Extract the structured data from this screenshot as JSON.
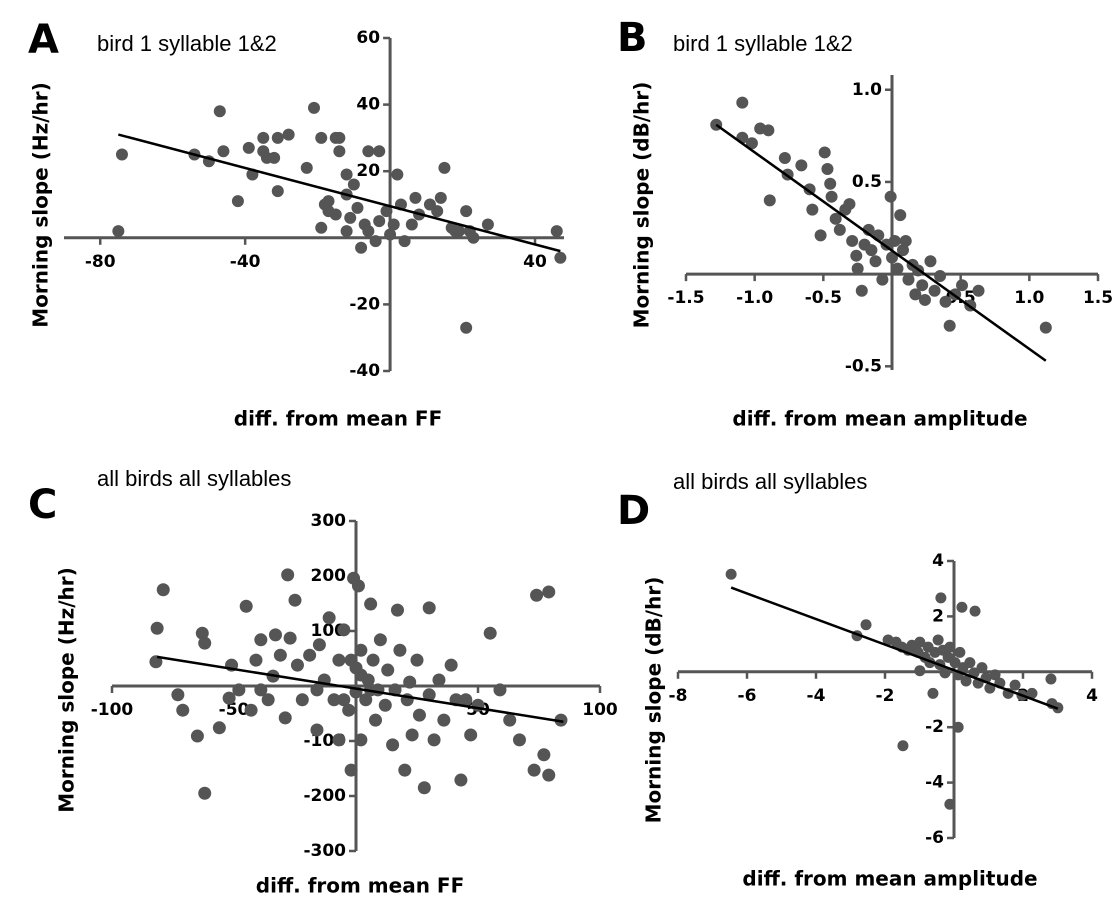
{
  "chart_data": [
    {
      "type": "scatter",
      "label": "A",
      "title": "bird 1 syllable 1&2",
      "x_label": "diff. from mean FF",
      "y_label": "Morning slope (Hz/hr)",
      "color": "#555555",
      "x": [
        -75,
        -74,
        -54,
        -50,
        -47,
        -46,
        -42,
        -39,
        -38,
        -35,
        -35,
        -34,
        -32,
        -31,
        -28,
        -31,
        -23,
        -21,
        -19,
        -19,
        -18,
        -17,
        -15,
        -14,
        -14,
        -12,
        -12,
        -11,
        -10,
        -9,
        -7,
        -6,
        -3,
        -8,
        -6,
        -4,
        -3,
        -1,
        0,
        1,
        2,
        3,
        4,
        6,
        7,
        8,
        11,
        13,
        14,
        15,
        18,
        19,
        21,
        22,
        23,
        21,
        27,
        46,
        47,
        17,
        -12,
        -15,
        -17
      ],
      "y": [
        2,
        25,
        25,
        23,
        38,
        26,
        11,
        27,
        19,
        26,
        30,
        24,
        24,
        14,
        31,
        30,
        21,
        39,
        30,
        3,
        10,
        8,
        30,
        26,
        30,
        19,
        13,
        6,
        16,
        9,
        4,
        26,
        26,
        -3,
        2,
        -1,
        5,
        8,
        1,
        4,
        19,
        10,
        -1,
        4,
        12,
        7,
        10,
        8,
        12,
        21,
        2,
        2,
        8,
        2,
        0,
        -27,
        4,
        2,
        -6,
        3,
        2,
        7,
        11
      ],
      "trend": {
        "x": [
          -75,
          47
        ],
        "y": [
          31,
          -4
        ]
      },
      "xlim": [
        -90,
        48
      ],
      "ylim": [
        -40,
        60
      ],
      "xticks": [
        -80,
        -40,
        40
      ],
      "yticks": [
        60,
        40,
        20,
        -20,
        -40
      ]
    },
    {
      "type": "scatter",
      "label": "B",
      "title": "bird 1 syllable 1&2",
      "x_label": "diff. from mean amplitude",
      "y_label": "Morning slope (dB/hr)",
      "color": "#555555",
      "x": [
        -1.28,
        -1.09,
        -1.09,
        -1.02,
        -0.96,
        -0.9,
        -0.89,
        -0.78,
        -0.76,
        -0.66,
        -0.6,
        -0.58,
        -0.52,
        -0.49,
        -0.47,
        -0.45,
        -0.44,
        -0.41,
        -0.38,
        -0.34,
        -0.31,
        -0.29,
        -0.26,
        -0.25,
        -0.22,
        -0.2,
        -0.17,
        -0.15,
        -0.12,
        -0.1,
        -0.07,
        -0.04,
        -0.01,
        0,
        0.02,
        0.04,
        0.06,
        0.08,
        0.1,
        0.12,
        0.15,
        0.17,
        0.19,
        0.22,
        0.24,
        0.28,
        0.31,
        0.35,
        0.39,
        0.42,
        0.46,
        0.51,
        0.57,
        0.63,
        1.12
      ],
      "y": [
        0.81,
        0.93,
        0.74,
        0.71,
        0.79,
        0.78,
        0.4,
        0.63,
        0.54,
        0.59,
        0.46,
        0.35,
        0.21,
        0.66,
        0.57,
        0.49,
        0.42,
        0.3,
        0.24,
        0.35,
        0.38,
        0.18,
        0.1,
        0.03,
        -0.09,
        0.16,
        0.24,
        0.13,
        0.07,
        0.21,
        -0.03,
        0.16,
        0.42,
        0.09,
        0.18,
        0.03,
        0.32,
        0.13,
        0.18,
        -0.03,
        0.05,
        -0.11,
        0.02,
        -0.06,
        -0.14,
        0.07,
        -0.09,
        -0.01,
        -0.15,
        -0.28,
        -0.11,
        -0.06,
        -0.17,
        -0.09,
        -0.29
      ],
      "trend": {
        "x": [
          -1.28,
          1.12
        ],
        "y": [
          0.81,
          -0.47
        ]
      },
      "xlim": [
        -1.5,
        1.5
      ],
      "ylim": [
        -0.52,
        1.08
      ],
      "xticks": [
        -1.5,
        {
          "value": -1,
          "label": "-1.0"
        },
        -0.5,
        0.5,
        {
          "value": 1,
          "label": "1.0"
        },
        1.5
      ],
      "yticks": [
        {
          "value": 1,
          "label": "1.0"
        },
        0.5,
        -0.5
      ]
    },
    {
      "type": "scatter",
      "label": "C",
      "title": "all birds all syllables",
      "x_label": "diff. from mean FF",
      "y_label": "Morning slope (Hz/hr)",
      "color": "#555555",
      "x": [
        -79,
        -81.5,
        -82,
        -73,
        -71,
        -63,
        -62,
        -65,
        -62,
        -56,
        -52,
        -51,
        -48,
        -45,
        -43,
        -41,
        -39,
        -39,
        -36,
        -34,
        -33,
        -31,
        -29,
        -28,
        -27,
        -25,
        -24,
        -22,
        -19,
        -16,
        -16,
        -15,
        -13,
        -11,
        -9,
        -7,
        -7,
        -5,
        -3,
        -2,
        -1,
        0,
        0,
        1,
        2,
        2,
        4,
        5,
        6,
        7,
        8,
        9,
        10,
        12,
        13,
        15,
        16,
        17,
        18,
        20,
        21,
        22,
        23,
        25,
        26,
        28,
        30,
        30,
        32,
        34,
        36,
        39,
        41,
        43,
        45,
        47,
        50,
        55,
        59,
        63,
        67,
        73,
        77,
        79,
        74,
        79,
        84,
        -5,
        2,
        6,
        -2
      ],
      "y": [
        175,
        105,
        44,
        -16,
        -44,
        96,
        78,
        -91,
        -195,
        -76,
        -22,
        38,
        -7,
        145,
        -44,
        47,
        84,
        -7,
        -25,
        18,
        93,
        56,
        -58,
        202,
        87,
        156,
        38,
        -25,
        56,
        -80,
        -7,
        75,
        11,
        124,
        -25,
        -98,
        47,
        102,
        -44,
        -153,
        196,
        33,
        -11,
        182,
        65,
        -98,
        -25,
        11,
        149,
        47,
        -62,
        -7,
        84,
        -35,
        29,
        -107,
        -7,
        138,
        65,
        -153,
        -25,
        7,
        -89,
        47,
        -53,
        -185,
        142,
        -16,
        -98,
        11,
        -62,
        38,
        -25,
        -171,
        -25,
        -89,
        -35,
        96,
        -7,
        -62,
        -98,
        -153,
        -125,
        -162,
        165,
        171,
        -62,
        -25,
        20,
        -7,
        47
      ],
      "trend": {
        "x": [
          -81.5,
          85
        ],
        "y": [
          53,
          -65
        ]
      },
      "xlim": [
        -100,
        100
      ],
      "ylim": [
        -300,
        300
      ],
      "xticks": [
        -100,
        -50,
        50,
        100
      ],
      "yticks": [
        300,
        200,
        100,
        -100,
        -200,
        -300
      ]
    },
    {
      "type": "scatter",
      "label": "D",
      "title": "all birds all syllables",
      "x_label": "diff. from mean amplitude",
      "y_label": "Morning slope (dB/hr)",
      "color": "#555555",
      "x": [
        -6.46,
        -2.55,
        -2.81,
        -1.91,
        -1.68,
        -1.51,
        -1.33,
        -1.22,
        -1.04,
        -0.99,
        -0.84,
        -0.75,
        -0.7,
        -0.55,
        -0.46,
        -0.41,
        -0.32,
        -0.26,
        -0.17,
        -0.12,
        0.03,
        0.12,
        0.17,
        0.26,
        0.35,
        0.46,
        0.58,
        0.7,
        0.81,
        0.93,
        1.04,
        1.19,
        1.33,
        1.57,
        1.77,
        1.97,
        2.26,
        2.84,
        3.01,
        2.81,
        -0.38,
        0.23,
        0.61,
        -1.48,
        0.12,
        -0.12,
        -0.61,
        -0.99
      ],
      "y": [
        3.52,
        1.7,
        1.3,
        1.15,
        1.07,
        0.89,
        0.78,
        0.96,
        0.7,
        1.07,
        0.52,
        0.89,
        0.33,
        0.7,
        1.15,
        0.26,
        0.78,
        -0.04,
        0.52,
        0.89,
        0.33,
        -0.11,
        0.7,
        0.15,
        -0.33,
        0.33,
        -0.04,
        -0.41,
        0.15,
        -0.22,
        -0.59,
        -0.11,
        -0.41,
        -0.78,
        -0.48,
        -0.85,
        -0.78,
        -1.15,
        -1.3,
        -0.26,
        2.67,
        2.33,
        2.19,
        -2.67,
        -2,
        -4.78,
        -0.78,
        0.04
      ],
      "trend": {
        "x": [
          -6.46,
          3.01
        ],
        "y": [
          3.04,
          -1.33
        ]
      },
      "xlim": [
        -8,
        4
      ],
      "ylim": [
        -6,
        4
      ],
      "xticks": [
        -8,
        -6,
        -4,
        -2,
        2,
        4
      ],
      "yticks": [
        4,
        2,
        -2,
        -4,
        -6
      ]
    }
  ]
}
